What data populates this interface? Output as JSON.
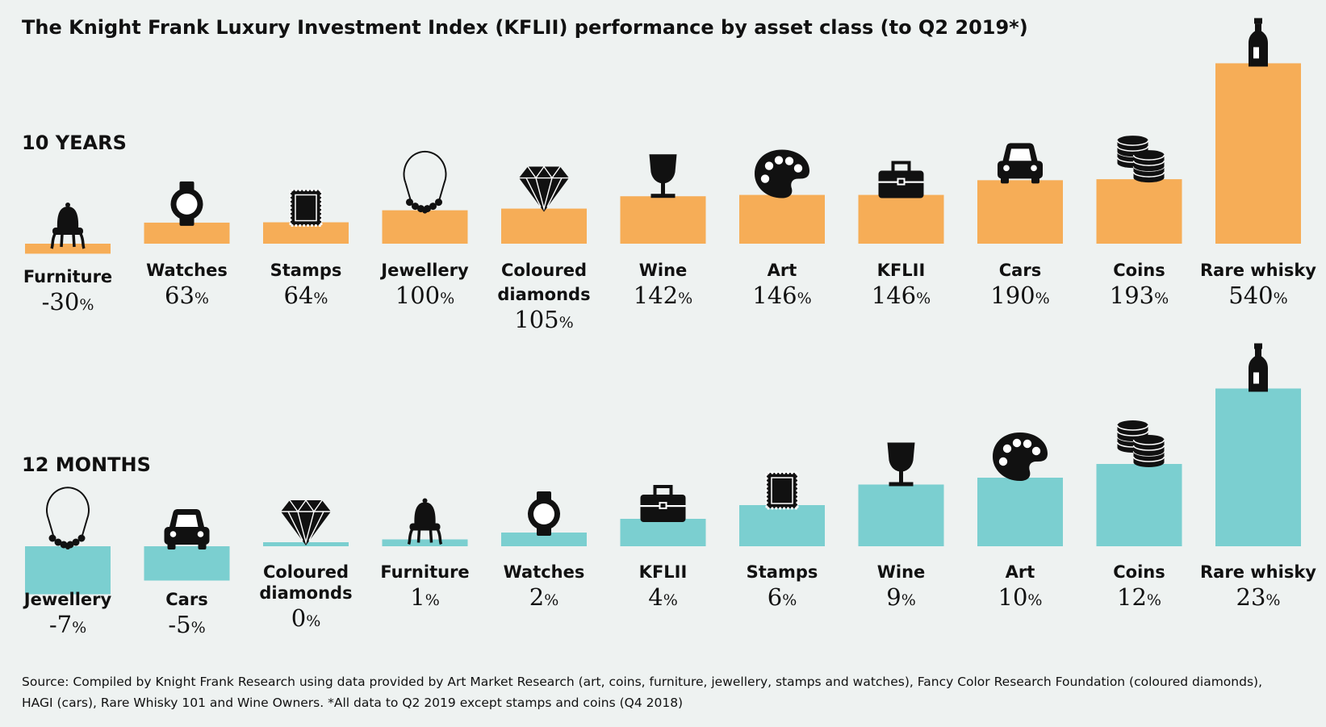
{
  "chart_data": [
    {
      "type": "bar",
      "title": "10 YEARS",
      "categories": [
        "Furniture",
        "Watches",
        "Stamps",
        "Jewellery",
        "Coloured diamonds",
        "Wine",
        "Art",
        "KFLII",
        "Cars",
        "Coins",
        "Rare whisky"
      ],
      "values": [
        -30,
        63,
        64,
        100,
        105,
        142,
        146,
        146,
        190,
        193,
        540
      ],
      "value_labels": [
        "-30",
        "63",
        "64",
        "100",
        "105",
        "142",
        "146",
        "146",
        "190",
        "193",
        "540"
      ],
      "icons": [
        "chair-icon",
        "watch-icon",
        "stamp-icon",
        "necklace-icon",
        "diamond-icon",
        "wine-glass-icon",
        "palette-icon",
        "briefcase-icon",
        "car-icon",
        "coins-icon",
        "whisky-bottle-icon"
      ],
      "unit": "%",
      "color": "#f6ad57"
    },
    {
      "type": "bar",
      "title": "12 MONTHS",
      "categories": [
        "Jewellery",
        "Cars",
        "Coloured diamonds",
        "Furniture",
        "Watches",
        "KFLII",
        "Stamps",
        "Wine",
        "Art",
        "Coins",
        "Rare whisky"
      ],
      "values": [
        -7,
        -5,
        0,
        1,
        2,
        4,
        6,
        9,
        10,
        12,
        23
      ],
      "value_labels": [
        "-7",
        "-5",
        "0",
        "1",
        "2",
        "4",
        "6",
        "9",
        "10",
        "12",
        "23"
      ],
      "icons": [
        "necklace-icon",
        "car-icon",
        "diamond-icon",
        "chair-icon",
        "watch-icon",
        "briefcase-icon",
        "stamp-icon",
        "wine-glass-icon",
        "palette-icon",
        "coins-icon",
        "whisky-bottle-icon"
      ],
      "unit": "%",
      "color": "#7bcfd0"
    }
  ],
  "title": "The Knight Frank Luxury Investment Index (KFLII) performance by asset class (to Q2 2019*)",
  "source_lines": [
    "Source: Compiled by Knight Frank Research using data provided by Art Market Research (art, coins, furniture, jewellery, stamps and watches), Fancy Color Research Foundation (coloured diamonds),",
    "HAGI (cars), Rare Whisky 101 and Wine Owners. *All data to Q2 2019 except stamps and coins (Q4 2018)"
  ],
  "colors": {
    "background": "#eef2f1",
    "ink": "#111111"
  }
}
